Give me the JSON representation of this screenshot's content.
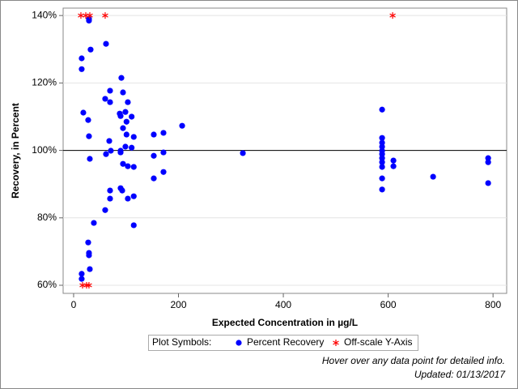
{
  "chart_data": {
    "type": "scatter",
    "xlabel": "Expected Concentration in µg/L",
    "ylabel": "Recovery, in Percent",
    "xlim": [
      -20,
      826
    ],
    "ylim": [
      57.6,
      142.2
    ],
    "xticks": [
      0,
      200,
      400,
      600,
      800
    ],
    "yticks": [
      {
        "value": 60,
        "label": "60%"
      },
      {
        "value": 80,
        "label": "80%"
      },
      {
        "value": 100,
        "label": "100%"
      },
      {
        "value": 120,
        "label": "120%"
      },
      {
        "value": 140,
        "label": "140%"
      }
    ],
    "grid": true,
    "refline": 100,
    "legend_title": "Plot Symbols:",
    "series": [
      {
        "name": "Percent Recovery",
        "color": "#0000ff",
        "marker": "circle",
        "x": [
          15.4,
          15.4,
          18.5,
          27.8,
          29.3,
          30.9,
          29.3,
          29.3,
          32.4,
          61.8,
          60.2,
          69.5,
          69.5,
          68,
          71,
          61.8,
          69.5,
          69.5,
          60.2,
          38.6,
          27.8,
          29.3,
          29.3,
          30.9,
          15.4,
          15.4,
          91.1,
          94.2,
          88,
          89.6,
          98.8,
          103.4,
          110.7,
          100.9,
          94.2,
          100.9,
          114.7,
          89.6,
          89.6,
          98.8,
          110.7,
          94.2,
          103.4,
          114.7,
          89.6,
          92.7,
          103.4,
          114.7,
          114.7,
          152.9,
          152.9,
          152.9,
          171.4,
          171.4,
          171.4,
          207,
          322.8,
          588.4,
          588.4,
          588.4,
          588.4,
          588.4,
          588.4,
          588.4,
          588.4,
          588.4,
          588.4,
          588.4,
          610,
          610,
          685.7,
          790.7,
          790.7,
          790.7
        ],
        "values": [
          127.3,
          124.1,
          111.2,
          109,
          104.2,
          97.5,
          139,
          138.5,
          129.9,
          131.6,
          115.3,
          117.7,
          114.3,
          102.8,
          99.9,
          98.9,
          88.1,
          85.7,
          82.3,
          78.5,
          72.7,
          69.6,
          68.9,
          64.8,
          63.4,
          61.9,
          121.5,
          117.2,
          110.9,
          110.2,
          111.4,
          114.3,
          110,
          108.5,
          106.6,
          104.7,
          104,
          99.9,
          99.4,
          101.1,
          100.8,
          96,
          95.3,
          95.1,
          88.8,
          88.1,
          85.7,
          86.4,
          77.8,
          104.7,
          98.4,
          91.7,
          105.2,
          99.4,
          93.6,
          107.3,
          99.2,
          112.1,
          103.7,
          102.3,
          101.1,
          99.9,
          98.9,
          97.7,
          96.5,
          95.1,
          91.7,
          88.4,
          97,
          95.3,
          92.2,
          97.7,
          96.5,
          90.3
        ]
      },
      {
        "name": "Off-scale Y-Axis",
        "color": "#ff0000",
        "marker": "asterisk",
        "x": [
          13.9,
          23.2,
          30.9,
          60.2,
          608.5,
          17,
          24.7,
          29.3
        ],
        "values": [
          140,
          140,
          140,
          140,
          140,
          60,
          60,
          60
        ]
      }
    ],
    "footnotes": [
      "Hover over any data point for detailed info.",
      "Updated: 01/13/2017"
    ]
  }
}
